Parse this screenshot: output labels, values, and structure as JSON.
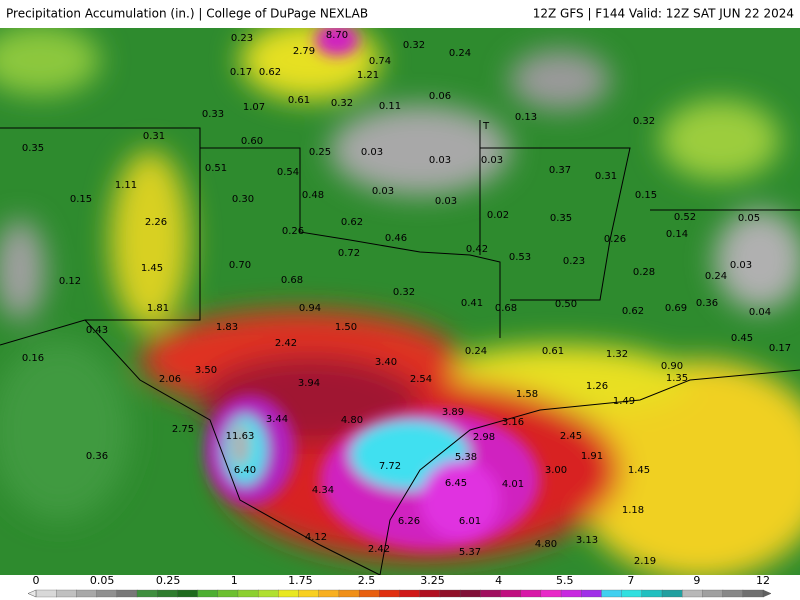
{
  "header": {
    "left": "Precipitation Accumulation (in.) | College of DuPage NEXLAB",
    "right": "12Z GFS | F144 Valid: 12Z SAT JUN 22 2024"
  },
  "labels": [
    "0.23",
    "2.79",
    "8.70",
    "0.32",
    "0.24",
    "0.17",
    "0.62",
    "0.74",
    "1.21",
    "0.06",
    "1.07",
    "0.61",
    "0.32",
    "0.11",
    "0.33",
    "0.13",
    "T",
    "0.32",
    "0.31",
    "0.60",
    "0.35",
    "0.25",
    "0.03",
    "0.03",
    "0.03",
    "0.37",
    "0.31",
    "0.51",
    "0.54",
    "1.11",
    "0.48",
    "0.03",
    "0.03",
    "0.15",
    "0.15",
    "0.30",
    "0.02",
    "0.35",
    "0.52",
    "0.05",
    "2.26",
    "0.62",
    "0.26",
    "0.14",
    "0.46",
    "0.26",
    "0.42",
    "0.72",
    "0.53",
    "0.23",
    "0.03",
    "0.70",
    "1.45",
    "0.28",
    "0.24",
    "0.12",
    "0.68",
    "0.32",
    "0.41",
    "0.50",
    "0.36",
    "1.81",
    "0.94",
    "0.68",
    "0.62",
    "0.69",
    "0.04",
    "1.83",
    "1.50",
    "0.43",
    "0.45",
    "0.17",
    "2.42",
    "0.24",
    "0.61",
    "1.32",
    "0.16",
    "3.40",
    "0.90",
    "3.50",
    "1.35",
    "2.06",
    "3.94",
    "2.54",
    "1.26",
    "1.58",
    "1.49",
    "3.44",
    "4.80",
    "3.89",
    "3.16",
    "2.75",
    "11.63",
    "2.98",
    "2.45",
    "0.36",
    "5.38",
    "1.91",
    "7.72",
    "6.40",
    "3.00",
    "1.45",
    "6.45",
    "4.01",
    "4.34",
    "1.18",
    "6.26",
    "6.01",
    "4.12",
    "4.80",
    "3.13",
    "2.42",
    "5.37",
    "2.19"
  ],
  "colorbar": [
    "0",
    "0.05",
    "0.25",
    "1",
    "1.75",
    "2.5",
    "3.25",
    "4",
    "5.5",
    "7",
    "9",
    "12"
  ]
}
